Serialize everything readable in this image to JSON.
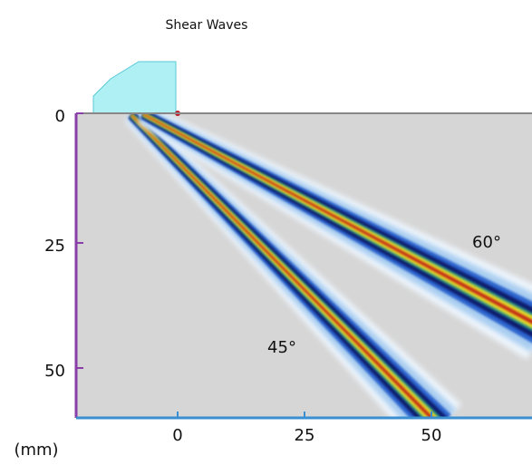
{
  "title": "Shear Waves",
  "y_axis": {
    "ticks": [
      "0",
      "25",
      "50"
    ]
  },
  "x_axis": {
    "ticks": [
      "0",
      "25",
      "50"
    ],
    "unit": "(mm)"
  },
  "beams": [
    {
      "label": "45°"
    },
    {
      "label": "60°"
    }
  ]
}
